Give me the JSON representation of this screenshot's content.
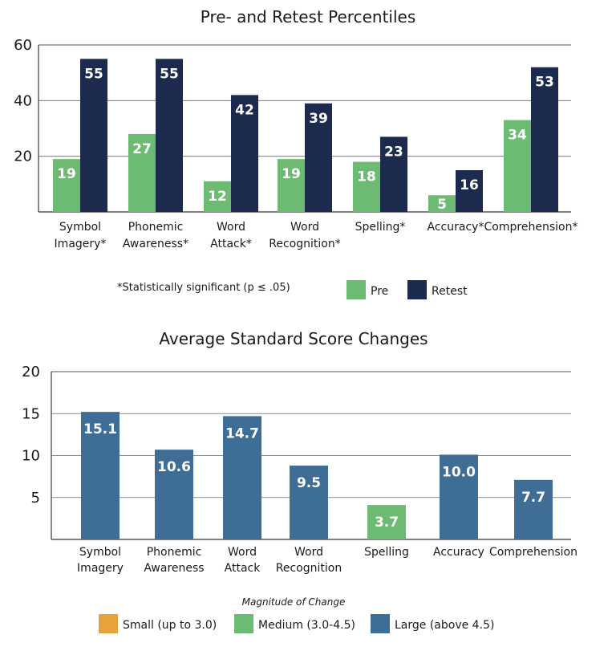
{
  "chart_data": [
    {
      "type": "bar",
      "title": "Pre- and Retest Percentiles",
      "categories": [
        [
          "Symbol",
          "Imagery*"
        ],
        [
          "Phonemic",
          "Awareness*"
        ],
        [
          "Word",
          "Attack*"
        ],
        [
          "Word",
          "Recognition*"
        ],
        [
          "Spelling*"
        ],
        [
          "Accuracy*"
        ],
        [
          "Comprehension*"
        ]
      ],
      "series": [
        {
          "name": "Pre",
          "color": "#6dbb72",
          "values": [
            19,
            27,
            12,
            19,
            18,
            5,
            34
          ]
        },
        {
          "name": "Retest",
          "color": "#1c2a4d",
          "values": [
            55,
            55,
            42,
            39,
            23,
            16,
            53
          ]
        }
      ],
      "bar_heights": [
        [
          19,
          28,
          11,
          19,
          18,
          6,
          33
        ],
        [
          55,
          55,
          42,
          39,
          27,
          15,
          52
        ]
      ],
      "ylim": [
        0,
        60
      ],
      "yticks": [
        20,
        40,
        60
      ],
      "grid": true,
      "footnote": "*Statistically significant (p ≤ .05)",
      "legend_position": "bottom-right"
    },
    {
      "type": "bar",
      "title": "Average Standard Score Changes",
      "categories": [
        [
          "Symbol",
          "Imagery"
        ],
        [
          "Phonemic",
          "Awareness"
        ],
        [
          "Word",
          "Attack"
        ],
        [
          "Word",
          "Recognition"
        ],
        [
          "Spelling"
        ],
        [
          "Accuracy"
        ],
        [
          "Comprehension"
        ]
      ],
      "values": [
        15.1,
        10.6,
        14.7,
        9.5,
        3.7,
        10.0,
        7.7
      ],
      "value_labels": [
        "15.1",
        "10.6",
        "14.7",
        "9.5",
        "3.7",
        "10.0",
        "7.7"
      ],
      "bar_heights": [
        15.2,
        10.7,
        14.7,
        8.8,
        4.1,
        10.1,
        7.1
      ],
      "magnitude": [
        "large",
        "large",
        "large",
        "large",
        "medium",
        "large",
        "large"
      ],
      "ylim": [
        0,
        20
      ],
      "yticks": [
        5,
        10,
        15,
        20
      ],
      "grid": true,
      "legend_title": "Magnitude of Change",
      "legend": [
        {
          "key": "small",
          "label": "Small (up to 3.0)",
          "color": "#e8a23c"
        },
        {
          "key": "medium",
          "label": "Medium (3.0-4.5)",
          "color": "#6dbb72"
        },
        {
          "key": "large",
          "label": "Large (above 4.5)",
          "color": "#3e6e96"
        }
      ],
      "legend_position": "bottom-center"
    }
  ]
}
